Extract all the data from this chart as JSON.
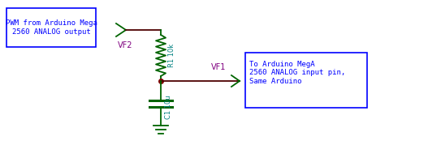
{
  "bg_color": "#ffffff",
  "wire_color": "#006400",
  "dark_wire_color": "#4d0000",
  "component_color": "#008080",
  "junction_color": "#800000",
  "label_color": "#800080",
  "box_color": "#0000ff",
  "box_text_color": "#0000ff",
  "resistor_label_color": "#008080",
  "cap_label_color": "#008080",
  "left_box_text": "PWM from Arduino Mega\n2560 ANALOG output",
  "right_box_text": "To Arduino MegA\n2560 ANALOG input pin,\nSame Arduino",
  "vf2_label": "VF2",
  "vf1_label": "VF1",
  "r1_label": "R1 10k",
  "c1_label": "C1 10u",
  "fig_w": 5.27,
  "fig_h": 2.0,
  "dpi": 100
}
